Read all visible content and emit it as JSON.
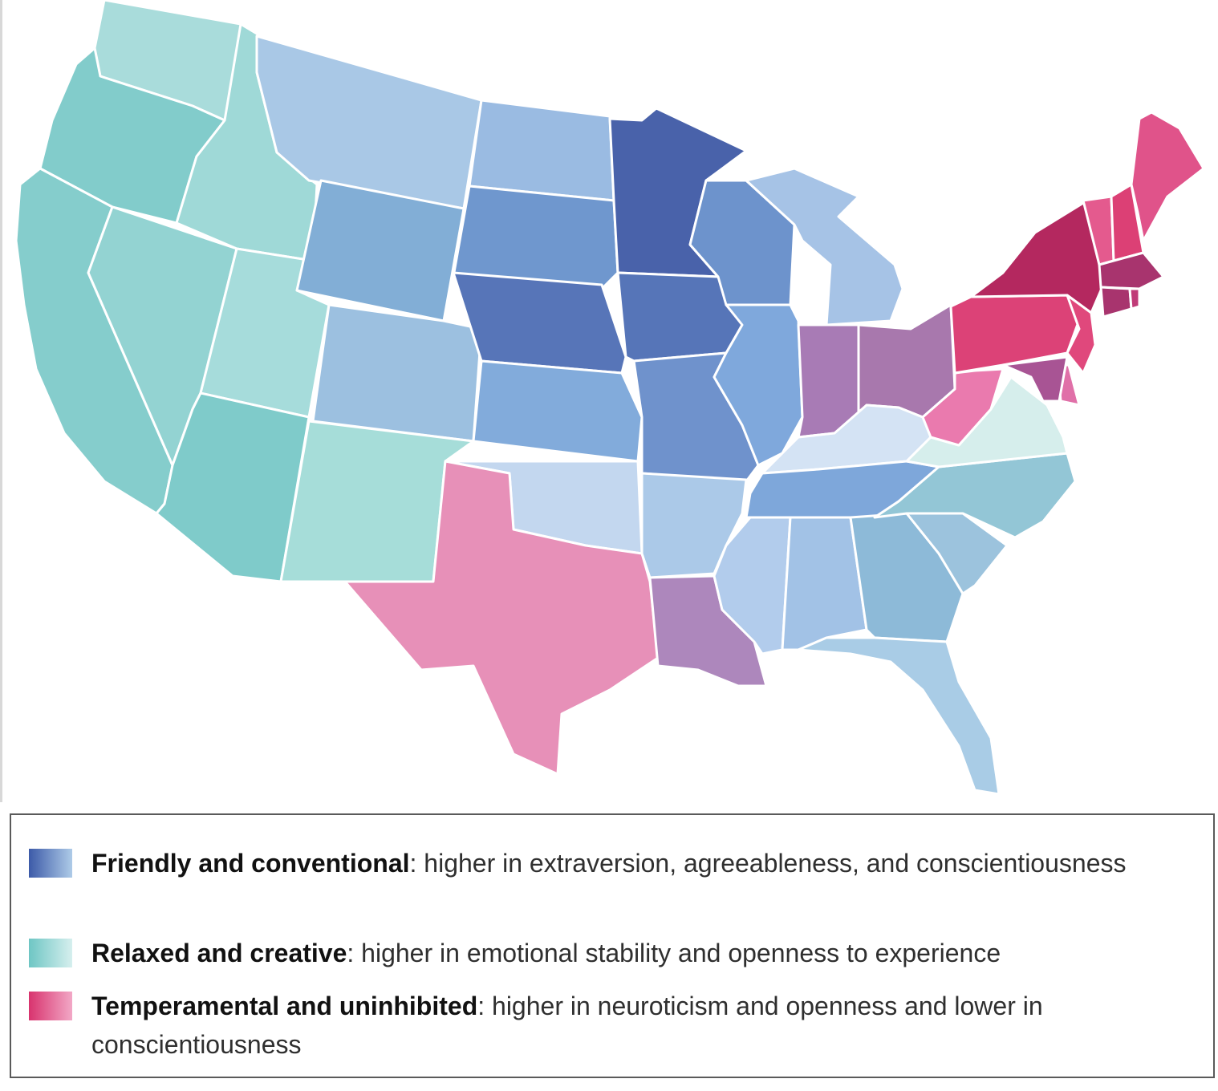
{
  "legend": {
    "items": [
      {
        "id": "friendly",
        "title": "Friendly and conventional",
        "description": ": higher in extraversion, agreeableness, and conscientiousness",
        "swatch_from": "#3c5aa8",
        "swatch_to": "#aecbe8"
      },
      {
        "id": "relaxed",
        "title": "Relaxed and creative",
        "description": ": higher in emotional stability and openness to experience",
        "swatch_from": "#6ec6c4",
        "swatch_to": "#d6efee"
      },
      {
        "id": "temperamental",
        "title": "Temperamental and uninhibited",
        "description": ": higher in neuroticism and openness and lower in conscientiousness",
        "swatch_from": "#d8336e",
        "swatch_to": "#f2a8c6"
      }
    ]
  },
  "states": {
    "WA": {
      "color": "#a9dcdb"
    },
    "OR": {
      "color": "#82cccb"
    },
    "CA": {
      "color": "#85cdcc"
    },
    "ID": {
      "color": "#9fd9d7"
    },
    "NV": {
      "color": "#93d3d2"
    },
    "UT": {
      "color": "#a6dcdb"
    },
    "AZ": {
      "color": "#7fcbca"
    },
    "MT": {
      "color": "#a9c8e6"
    },
    "WY": {
      "color": "#82aed6"
    },
    "CO": {
      "color": "#9cc0e0"
    },
    "NM": {
      "color": "#a6ddd9"
    },
    "ND": {
      "color": "#9abbe2"
    },
    "SD": {
      "color": "#6f97ce"
    },
    "NE": {
      "color": "#5775b8"
    },
    "KS": {
      "color": "#82abdb"
    },
    "OK": {
      "color": "#c3d7ef"
    },
    "TX": {
      "color": "#e790b8"
    },
    "MN": {
      "color": "#4962aa"
    },
    "IA": {
      "color": "#5675b8"
    },
    "MO": {
      "color": "#6f92cc"
    },
    "AR": {
      "color": "#abc9e8"
    },
    "LA": {
      "color": "#ad87bc"
    },
    "WI": {
      "color": "#6d93cc"
    },
    "MI": {
      "color": "#a6c3e6"
    },
    "IL": {
      "color": "#7fa8dc"
    },
    "IN": {
      "color": "#a87bb5"
    },
    "OH": {
      "color": "#a878ad"
    },
    "KY": {
      "color": "#d4e3f4"
    },
    "TN": {
      "color": "#7ea7da"
    },
    "MS": {
      "color": "#b2ccec"
    },
    "AL": {
      "color": "#a2c2e6"
    },
    "GA": {
      "color": "#8dbad8"
    },
    "FL": {
      "color": "#a9cce6"
    },
    "SC": {
      "color": "#9cc3dd"
    },
    "NC": {
      "color": "#93c6d6"
    },
    "VA": {
      "color": "#d6eeec"
    },
    "WV": {
      "color": "#ea7aae"
    },
    "PA": {
      "color": "#dc4277"
    },
    "NY": {
      "color": "#b4285f"
    },
    "ME": {
      "color": "#e0538a"
    },
    "NH": {
      "color": "#dc4075"
    },
    "VT": {
      "color": "#e45a8e"
    },
    "MA": {
      "color": "#a8346e"
    },
    "CT": {
      "color": "#a8346e"
    },
    "RI": {
      "color": "#c03c78"
    },
    "NJ": {
      "color": "#e0487c"
    },
    "DE": {
      "color": "#e070a8"
    },
    "MD": {
      "color": "#a85494"
    }
  }
}
